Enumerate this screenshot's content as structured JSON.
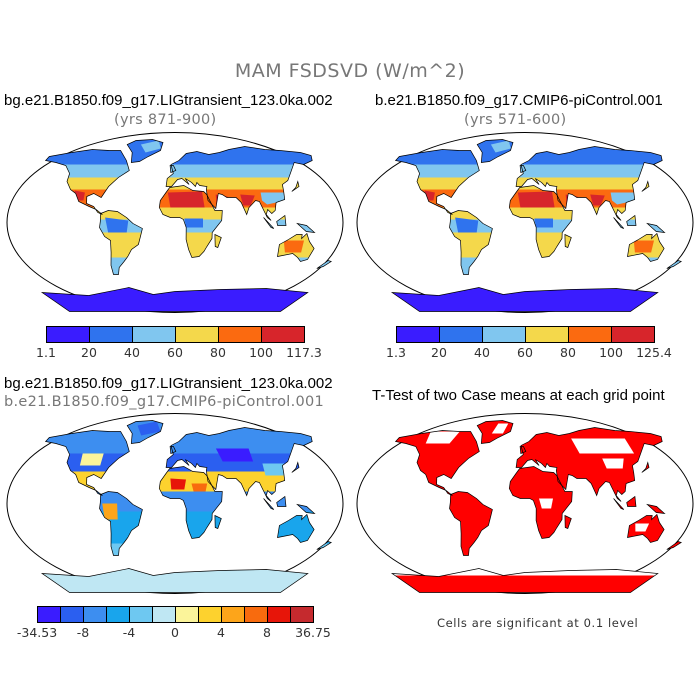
{
  "title": "MAM FSDSVD (W/m^2)",
  "panels": [
    {
      "title": "bg.e21.B1850.f09_g17.LIGtransient_123.0ka.002",
      "subtitle": "(yrs 871-900)",
      "colorbar": {
        "colors": [
          "#3a1cff",
          "#2f73ee",
          "#80c6ef",
          "#f4d84b",
          "#fb6a10",
          "#d7252b"
        ],
        "labels": [
          "1.1",
          "20",
          "40",
          "60",
          "80",
          "100",
          "117.3"
        ]
      }
    },
    {
      "title": "b.e21.B1850.f09_g17.CMIP6-piControl.001",
      "subtitle": "(yrs 571-600)",
      "colorbar": {
        "colors": [
          "#3a1cff",
          "#2f73ee",
          "#80c6ef",
          "#f4d84b",
          "#fb6a10",
          "#d7252b"
        ],
        "labels": [
          "1.3",
          "20",
          "40",
          "60",
          "80",
          "100",
          "125.4"
        ]
      }
    },
    {
      "title": "bg.e21.B1850.f09_g17.LIGtransient_123.0ka.002",
      "subtitle": "b.e21.B1850.f09_g17.CMIP6-piControl.001",
      "colorbar": {
        "colors": [
          "#3a1cff",
          "#2b5ff0",
          "#3d8ef0",
          "#19a5ec",
          "#6ec8f1",
          "#bfe7f3",
          "#fbf49a",
          "#fdd22e",
          "#fda51a",
          "#f86b0e",
          "#e71509",
          "#c52a2e"
        ],
        "labels": [
          "-34.53",
          "-8",
          "-4",
          "0",
          "4",
          "8",
          "36.75"
        ]
      }
    },
    {
      "title": "T-Test of two Case means at each grid point",
      "footnote": "Cells are significant at 0.1 level"
    }
  ]
}
